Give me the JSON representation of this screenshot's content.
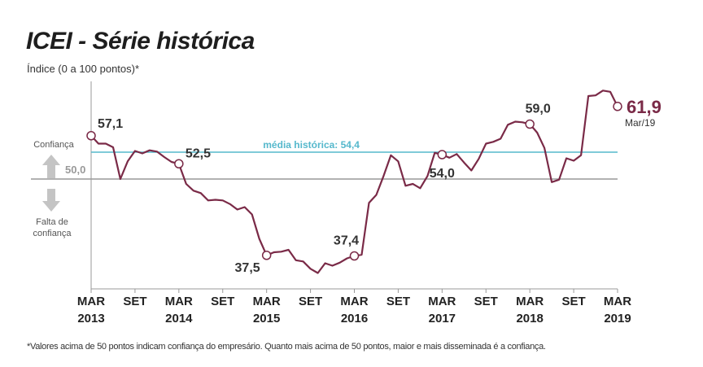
{
  "header": {
    "title": "ICEI - Série histórica",
    "subtitle": "Índice (0 a 100 pontos)*"
  },
  "footnote": "*Valores acima de 50 pontos indicam confiança do empresário. Quanto mais acima de 50 pontos, maior e mais disseminada é a confiança.",
  "legend": {
    "confidence": "Confiança",
    "no_confidence_line1": "Falta de",
    "no_confidence_line2": "confiança"
  },
  "colors": {
    "series": "#7a2a47",
    "average": "#55b8cc",
    "baseline": "#999999",
    "arrow": "#c4c4c4",
    "last_value": "#7a2a47"
  },
  "chart_data": {
    "type": "line",
    "title": "ICEI - Série histórica",
    "ylabel": "Índice (0 a 100 pontos)*",
    "ylim": [
      32,
      66
    ],
    "threshold": {
      "value": 50.0,
      "label": "50,0"
    },
    "average": {
      "value": 54.4,
      "label": "média histórica: 54,4"
    },
    "x_ticks": [
      {
        "i": 0,
        "month": "MAR",
        "year": "2013"
      },
      {
        "i": 6,
        "month": "SET",
        "year": ""
      },
      {
        "i": 12,
        "month": "MAR",
        "year": "2014"
      },
      {
        "i": 18,
        "month": "SET",
        "year": ""
      },
      {
        "i": 24,
        "month": "MAR",
        "year": "2015"
      },
      {
        "i": 30,
        "month": "SET",
        "year": ""
      },
      {
        "i": 36,
        "month": "MAR",
        "year": "2016"
      },
      {
        "i": 42,
        "month": "SET",
        "year": ""
      },
      {
        "i": 48,
        "month": "MAR",
        "year": "2017"
      },
      {
        "i": 54,
        "month": "SET",
        "year": ""
      },
      {
        "i": 60,
        "month": "MAR",
        "year": "2018"
      },
      {
        "i": 66,
        "month": "SET",
        "year": ""
      },
      {
        "i": 72,
        "month": "MAR",
        "year": "2019"
      }
    ],
    "series": [
      {
        "name": "ICEI",
        "start": "Mar/2013",
        "values": [
          57.1,
          55.8,
          55.8,
          55.2,
          50.0,
          52.9,
          54.6,
          54.2,
          54.7,
          54.5,
          53.6,
          52.8,
          52.5,
          49.2,
          48.1,
          47.7,
          46.5,
          46.6,
          46.5,
          45.9,
          45.0,
          45.4,
          44.2,
          40.2,
          37.5,
          38.0,
          38.1,
          38.4,
          36.7,
          36.5,
          35.3,
          34.6,
          36.2,
          35.8,
          36.3,
          37.0,
          37.4,
          37.6,
          46.1,
          47.4,
          50.5,
          53.9,
          52.9,
          48.9,
          49.2,
          48.5,
          50.5,
          54.3,
          54.0,
          53.5,
          54.1,
          52.7,
          51.4,
          53.3,
          55.8,
          56.1,
          56.6,
          58.9,
          59.4,
          59.3,
          59.0,
          57.6,
          55.1,
          49.5,
          49.9,
          53.4,
          53.0,
          53.9,
          63.6,
          63.7,
          64.5,
          64.3,
          61.9
        ]
      }
    ],
    "annotations": [
      {
        "i": 0,
        "label": "57,1"
      },
      {
        "i": 12,
        "label": "52,5"
      },
      {
        "i": 24,
        "label": "37,5"
      },
      {
        "i": 36,
        "label": "37,4"
      },
      {
        "i": 48,
        "label": "54,0"
      },
      {
        "i": 60,
        "label": "59,0"
      },
      {
        "i": 72,
        "label": "61,9",
        "sublabel": "Mar/19"
      }
    ]
  }
}
